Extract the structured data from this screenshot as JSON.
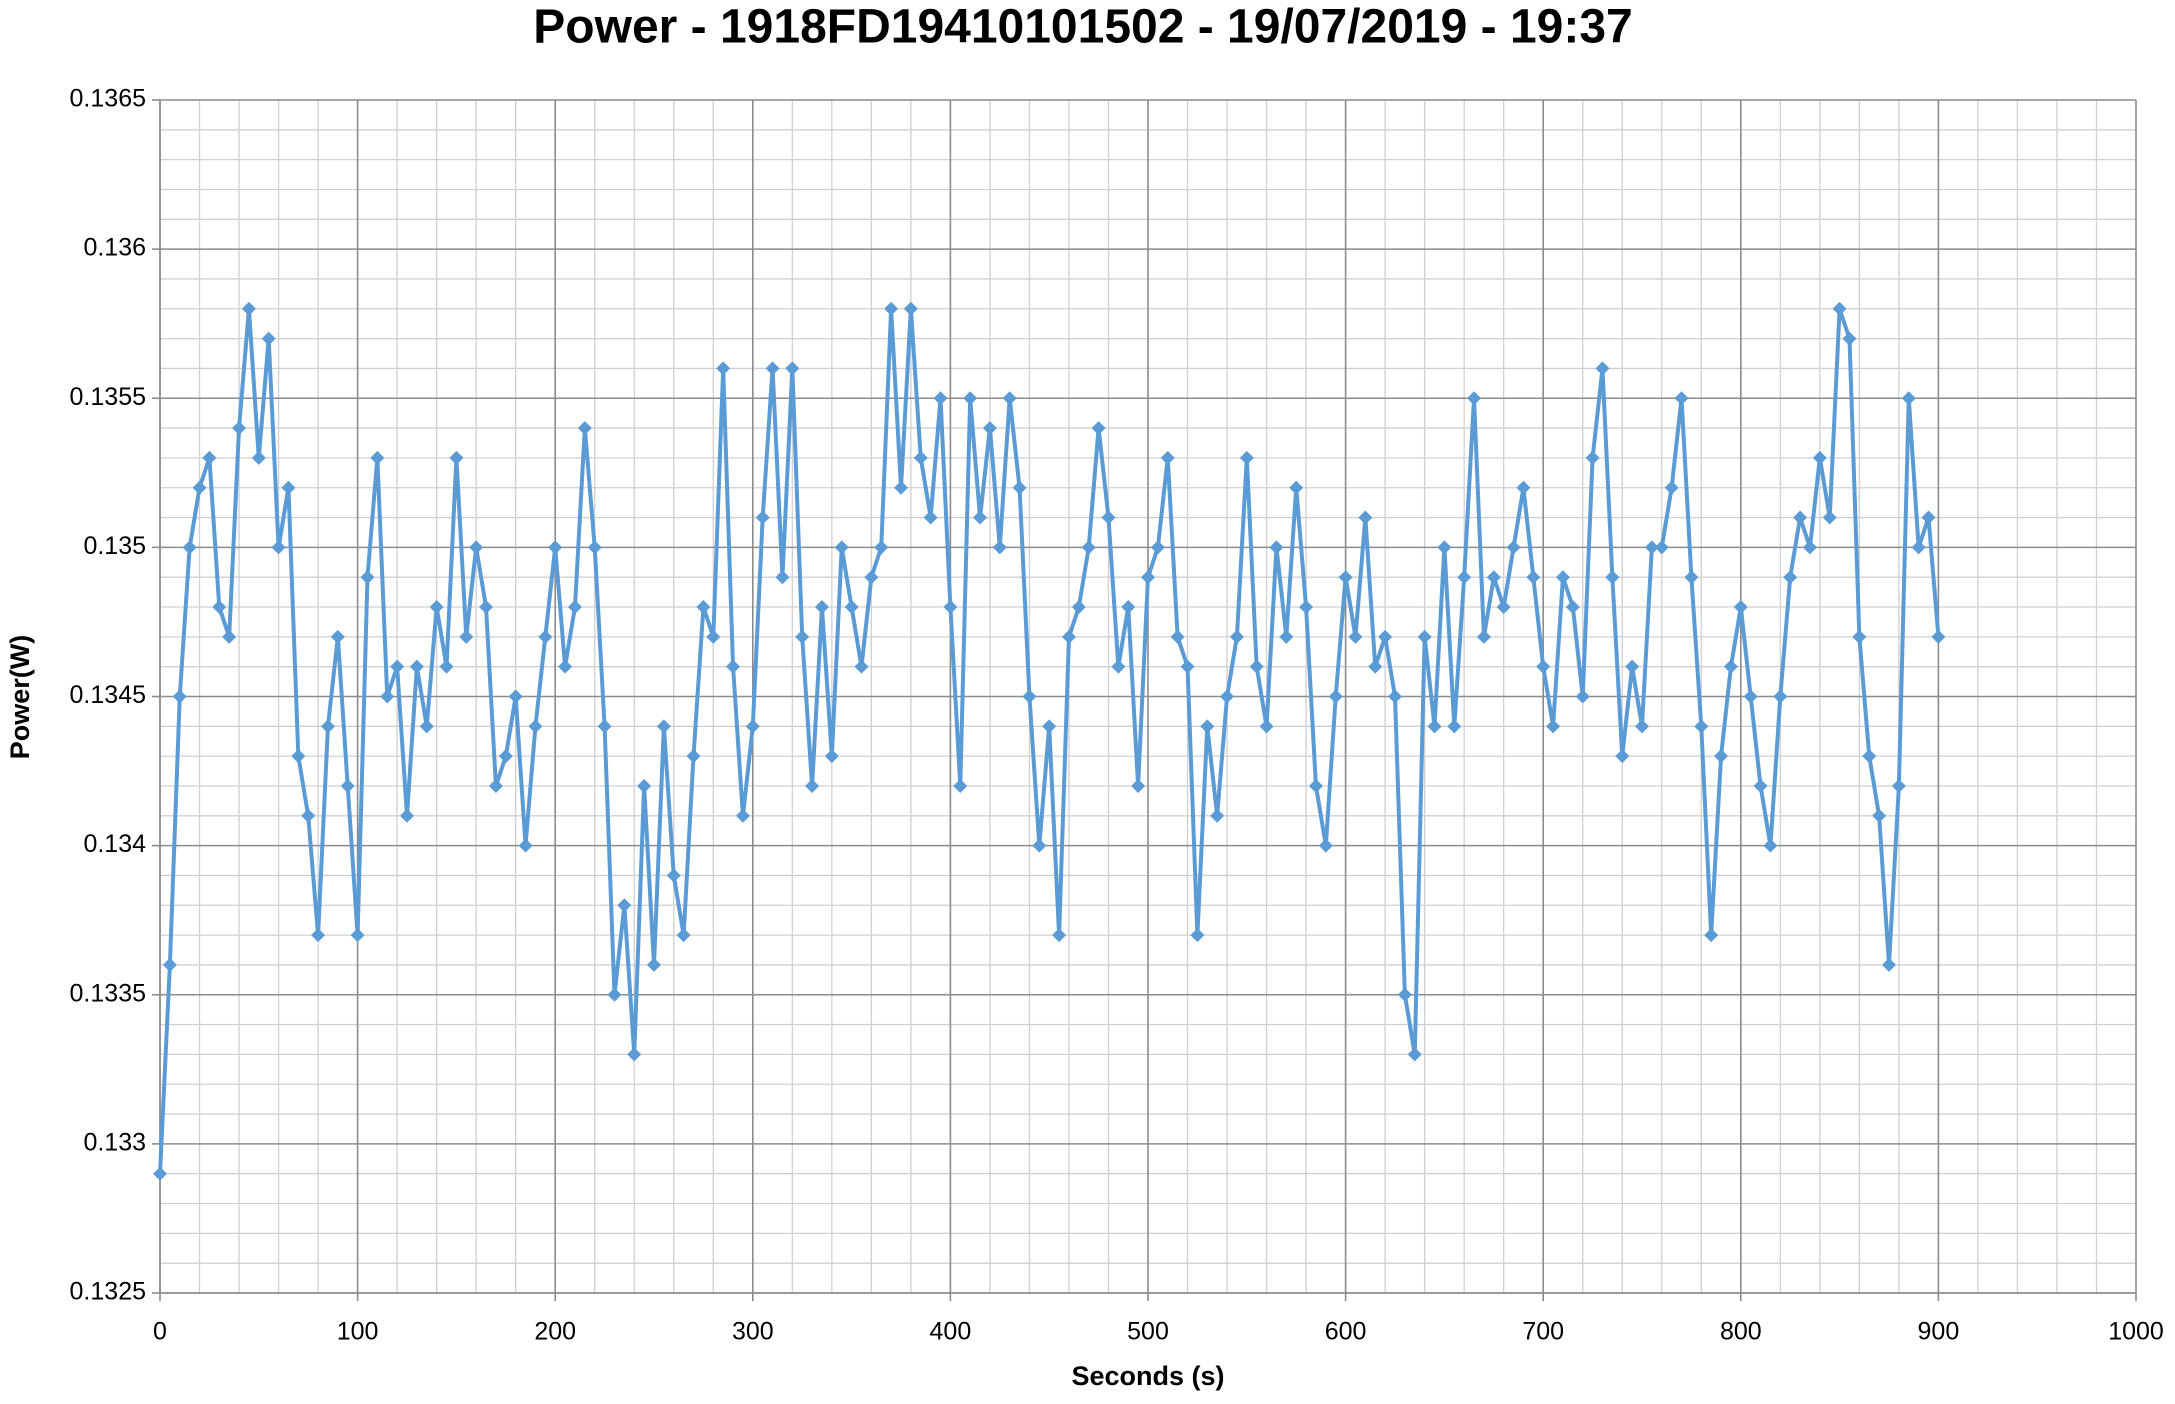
{
  "chart_data": {
    "type": "line",
    "title": "Power - 1918FD19410101502 - 19/07/2019 - 19:37",
    "xlabel": "Seconds (s)",
    "ylabel": "Power(W)",
    "xlim": [
      0,
      1000
    ],
    "xticks": [
      0,
      100,
      200,
      300,
      400,
      500,
      600,
      700,
      800,
      900,
      1000
    ],
    "ylim": [
      0.1325,
      0.1365
    ],
    "yticks": [
      0.1325,
      0.133,
      0.1335,
      0.134,
      0.1345,
      0.135,
      0.1355,
      0.136,
      0.1365
    ],
    "grid": true,
    "minor_grid": true,
    "marker": "diamond",
    "x": [
      0,
      5,
      10,
      15,
      20,
      25,
      30,
      35,
      40,
      45,
      50,
      55,
      60,
      65,
      70,
      75,
      80,
      85,
      90,
      95,
      100,
      105,
      110,
      115,
      120,
      125,
      130,
      135,
      140,
      145,
      150,
      155,
      160,
      165,
      170,
      175,
      180,
      185,
      190,
      195,
      200,
      205,
      210,
      215,
      220,
      225,
      230,
      235,
      240,
      245,
      250,
      255,
      260,
      265,
      270,
      275,
      280,
      285,
      290,
      295,
      300,
      305,
      310,
      315,
      320,
      325,
      330,
      335,
      340,
      345,
      350,
      355,
      360,
      365,
      370,
      375,
      380,
      385,
      390,
      395,
      400,
      405,
      410,
      415,
      420,
      425,
      430,
      435,
      440,
      445,
      450,
      455,
      460,
      465,
      470,
      475,
      480,
      485,
      490,
      495,
      500,
      505,
      510,
      515,
      520,
      525,
      530,
      535,
      540,
      545,
      550,
      555,
      560,
      565,
      570,
      575,
      580,
      585,
      590,
      595,
      600,
      605,
      610,
      615,
      620,
      625,
      630,
      635,
      640,
      645,
      650,
      655,
      660,
      665,
      670,
      675,
      680,
      685,
      690,
      695,
      700,
      705,
      710,
      715,
      720,
      725,
      730,
      735,
      740,
      745,
      750,
      755,
      760,
      765,
      770,
      775,
      780,
      785,
      790,
      795,
      800,
      805,
      810,
      815,
      820,
      825,
      830,
      835,
      840,
      845,
      850,
      855,
      860,
      865,
      870,
      875,
      880,
      885,
      890,
      895,
      900
    ],
    "series": [
      {
        "name": "Power",
        "color": "#5b9bd5",
        "values": [
          0.1329,
          0.1336,
          0.1345,
          0.135,
          0.1352,
          0.1353,
          0.1348,
          0.1347,
          0.1354,
          0.1358,
          0.1353,
          0.1357,
          0.135,
          0.1352,
          0.1343,
          0.1341,
          0.1337,
          0.1344,
          0.1347,
          0.1342,
          0.1337,
          0.1349,
          0.1353,
          0.1345,
          0.1346,
          0.1341,
          0.1346,
          0.1344,
          0.1348,
          0.1346,
          0.1353,
          0.1347,
          0.135,
          0.1348,
          0.1342,
          0.1343,
          0.1345,
          0.134,
          0.1344,
          0.1347,
          0.135,
          0.1346,
          0.1348,
          0.1354,
          0.135,
          0.1344,
          0.1335,
          0.1338,
          0.1333,
          0.1342,
          0.1336,
          0.1344,
          0.1339,
          0.1337,
          0.1343,
          0.1348,
          0.1347,
          0.1356,
          0.1346,
          0.1341,
          0.1344,
          0.1351,
          0.1356,
          0.1349,
          0.1356,
          0.1347,
          0.1342,
          0.1348,
          0.1343,
          0.135,
          0.1348,
          0.1346,
          0.1349,
          0.135,
          0.1358,
          0.1352,
          0.1358,
          0.1353,
          0.1351,
          0.1355,
          0.1348,
          0.1342,
          0.1355,
          0.1351,
          0.1354,
          0.135,
          0.1355,
          0.1352,
          0.1345,
          0.134,
          0.1344,
          0.1337,
          0.1347,
          0.1348,
          0.135,
          0.1354,
          0.1351,
          0.1346,
          0.1348,
          0.1342,
          0.1349,
          0.135,
          0.1353,
          0.1347,
          0.1346,
          0.1337,
          0.1344,
          0.1341,
          0.1345,
          0.1347,
          0.1353,
          0.1346,
          0.1344,
          0.135,
          0.1347,
          0.1352,
          0.1348,
          0.1342,
          0.134,
          0.1345,
          0.1349,
          0.1347,
          0.1351,
          0.1346,
          0.1347,
          0.1345,
          0.1335,
          0.1333,
          0.1347,
          0.1344,
          0.135,
          0.1344,
          0.1349,
          0.1355,
          0.1347,
          0.1349,
          0.1348,
          0.135,
          0.1352,
          0.1349,
          0.1346,
          0.1344,
          0.1349,
          0.1348,
          0.1345,
          0.1353,
          0.1356,
          0.1349,
          0.1343,
          0.1346,
          0.1344,
          0.135,
          0.135,
          0.1352,
          0.1355,
          0.1349,
          0.1344,
          0.1337,
          0.1343,
          0.1346,
          0.1348,
          0.1345,
          0.1342,
          0.134,
          0.1345,
          0.1349,
          0.1351,
          0.135,
          0.1353,
          0.1351,
          0.1358,
          0.1357,
          0.1347,
          0.1343,
          0.1341,
          0.1336,
          0.1342,
          0.1355,
          0.135,
          0.1351,
          0.1347
        ]
      }
    ]
  }
}
